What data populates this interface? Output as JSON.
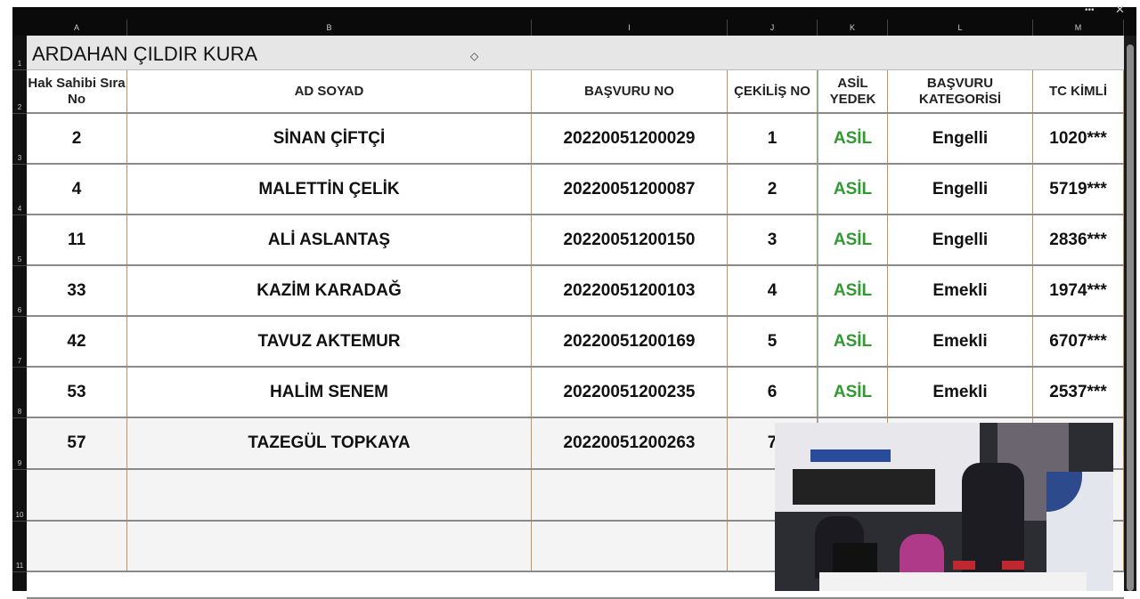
{
  "window": {
    "more_icon": "ellipsis-icon",
    "close_icon": "close-icon"
  },
  "columns": [
    "A",
    "B",
    "I",
    "J",
    "K",
    "L",
    "M"
  ],
  "row_numbers": [
    "1",
    "2",
    "3",
    "4",
    "5",
    "6",
    "7",
    "8",
    "9",
    "10",
    "11"
  ],
  "title": "ARDAHAN ÇILDIR KURA",
  "headers": [
    "Hak Sahibi Sıra No",
    "AD SOYAD",
    "BAŞVURU NO",
    "ÇEKİLİŞ NO",
    "ASİL YEDEK",
    "BAŞVURU KATEGORİSİ",
    "TC KİMLİ"
  ],
  "rows": [
    [
      "2",
      "SİNAN ÇİFTÇİ",
      "20220051200029",
      "1",
      "ASİL",
      "Engelli",
      "1020***"
    ],
    [
      "4",
      "MALETTİN ÇELİK",
      "20220051200087",
      "2",
      "ASİL",
      "Engelli",
      "5719***"
    ],
    [
      "11",
      "ALİ ASLANTAŞ",
      "20220051200150",
      "3",
      "ASİL",
      "Engelli",
      "2836***"
    ],
    [
      "33",
      "KAZİM KARADAĞ",
      "20220051200103",
      "4",
      "ASİL",
      "Emekli",
      "1974***"
    ],
    [
      "42",
      "TAVUZ AKTEMUR",
      "20220051200169",
      "5",
      "ASİL",
      "Emekli",
      "6707***"
    ],
    [
      "53",
      "HALİM SENEM",
      "20220051200235",
      "6",
      "ASİL",
      "Emekli",
      "2537***"
    ],
    [
      "57",
      "TAZEGÜL TOPKAYA",
      "20220051200263",
      "7",
      "",
      "",
      ""
    ],
    [
      "",
      "",
      "",
      "",
      "",
      "",
      ""
    ],
    [
      "",
      "",
      "",
      "",
      "",
      "",
      ""
    ]
  ],
  "colors": {
    "asil": "#2f9a2f",
    "grid_vertical": "#c8915a"
  },
  "video_overlay": "live-camera-feed"
}
